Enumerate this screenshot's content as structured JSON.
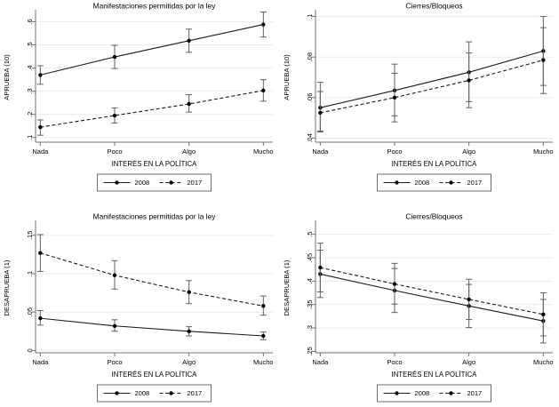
{
  "page": {
    "background": "#ffffff"
  },
  "colors": {
    "line": "#1a1a1a",
    "marker": "#000000",
    "error_bar": "#5f5f5f",
    "axis": "#707070",
    "grid": "#e4ecf2",
    "text": "#000000",
    "legend_border": "#6b6b6b",
    "background": "#ffffff"
  },
  "legend": {
    "items": [
      {
        "label": "2008",
        "style": "solid",
        "marker": "circle"
      },
      {
        "label": "2017",
        "style": "dashed",
        "marker": "circle"
      }
    ],
    "position": "bottom"
  },
  "chart_data": [
    {
      "type": "line",
      "position": "top-left",
      "title": "Manifestaciones permitidas por la ley",
      "ylabel": "APRUEBA (10)",
      "xlabel": "INTERÉS EN LA POLÍTICA",
      "categories": [
        "Nada",
        "Poco",
        "Algo",
        "Mucho"
      ],
      "ylim": [
        0.08,
        0.64
      ],
      "yticks": [
        0.1,
        0.2,
        0.3,
        0.4,
        0.5,
        0.6
      ],
      "ytick_labels": [
        ".1",
        ".2",
        ".3",
        ".4",
        ".5",
        ".6"
      ],
      "grid": true,
      "legend_position": "bottom",
      "series": [
        {
          "name": "2008",
          "line_style": "solid",
          "marker": "circle",
          "values": [
            0.37,
            0.448,
            0.518,
            0.588
          ],
          "ci_low": [
            0.33,
            0.398,
            0.468,
            0.534
          ],
          "ci_high": [
            0.41,
            0.498,
            0.568,
            0.642
          ]
        },
        {
          "name": "2017",
          "line_style": "dashed",
          "marker": "circle",
          "values": [
            0.145,
            0.195,
            0.245,
            0.303
          ],
          "ci_low": [
            0.11,
            0.163,
            0.21,
            0.257
          ],
          "ci_high": [
            0.176,
            0.228,
            0.285,
            0.35
          ]
        }
      ]
    },
    {
      "type": "line",
      "position": "top-right",
      "title": "Cierres/Bloqueos",
      "ylabel": "APRUEBA (10)",
      "xlabel": "INTERÉS EN LA POLÍTICA",
      "categories": [
        "Nada",
        "Poco",
        "Algo",
        "Mucho"
      ],
      "ylim": [
        0.038,
        0.102
      ],
      "yticks": [
        0.04,
        0.06,
        0.08,
        0.1
      ],
      "ytick_labels": [
        ".04",
        ".06",
        ".08",
        ".1"
      ],
      "grid": true,
      "legend_position": "bottom",
      "series": [
        {
          "name": "2008",
          "line_style": "solid",
          "marker": "circle",
          "values": [
            0.055,
            0.0635,
            0.0725,
            0.083
          ],
          "ci_low": [
            0.0435,
            0.051,
            0.058,
            0.066
          ],
          "ci_high": [
            0.0675,
            0.0765,
            0.0875,
            0.1
          ]
        },
        {
          "name": "2017",
          "line_style": "dashed",
          "marker": "circle",
          "values": [
            0.0525,
            0.06,
            0.0685,
            0.0785
          ],
          "ci_low": [
            0.043,
            0.048,
            0.055,
            0.062
          ],
          "ci_high": [
            0.063,
            0.072,
            0.082,
            0.0945
          ]
        }
      ]
    },
    {
      "type": "line",
      "position": "bottom-left",
      "title": "Manifestaciones permitidas por la ley",
      "ylabel": "DESAPRUEBA (1)",
      "xlabel": "INTERÉS EN LA POLÍTICA",
      "categories": [
        "Nada",
        "Poco",
        "Algo",
        "Mucho"
      ],
      "ylim": [
        -0.003,
        0.166
      ],
      "yticks": [
        0,
        0.05,
        0.1,
        0.15
      ],
      "ytick_labels": [
        "0",
        ".05",
        ".1",
        ".15"
      ],
      "grid": true,
      "legend_position": "bottom",
      "series": [
        {
          "name": "2008",
          "line_style": "solid",
          "marker": "circle",
          "values": [
            0.042,
            0.032,
            0.025,
            0.019
          ],
          "ci_low": [
            0.033,
            0.025,
            0.019,
            0.014
          ],
          "ci_high": [
            0.052,
            0.04,
            0.031,
            0.024
          ]
        },
        {
          "name": "2017",
          "line_style": "dashed",
          "marker": "circle",
          "values": [
            0.127,
            0.098,
            0.076,
            0.058
          ],
          "ci_low": [
            0.103,
            0.08,
            0.061,
            0.046
          ],
          "ci_high": [
            0.151,
            0.117,
            0.091,
            0.071
          ]
        }
      ]
    },
    {
      "type": "line",
      "position": "bottom-right",
      "title": "Cierres/Bloqueos",
      "ylabel": "DESAPRUEBA (1)",
      "xlabel": "INTERÉS EN LA POLÍTICA",
      "categories": [
        "Nada",
        "Poco",
        "Algo",
        "Mucho"
      ],
      "ylim": [
        0.247,
        0.524
      ],
      "yticks": [
        0.25,
        0.3,
        0.35,
        0.4,
        0.45,
        0.5
      ],
      "ytick_labels": [
        ".25",
        ".3",
        ".35",
        ".4",
        ".45",
        ".5"
      ],
      "grid": true,
      "legend_position": "bottom",
      "series": [
        {
          "name": "2008",
          "line_style": "solid",
          "marker": "circle",
          "values": [
            0.415,
            0.38,
            0.347,
            0.315
          ],
          "ci_low": [
            0.365,
            0.333,
            0.301,
            0.268
          ],
          "ci_high": [
            0.466,
            0.427,
            0.393,
            0.361
          ]
        },
        {
          "name": "2017",
          "line_style": "dashed",
          "marker": "circle",
          "values": [
            0.429,
            0.394,
            0.361,
            0.329
          ],
          "ci_low": [
            0.377,
            0.351,
            0.318,
            0.283
          ],
          "ci_high": [
            0.481,
            0.438,
            0.404,
            0.375
          ]
        }
      ]
    }
  ]
}
